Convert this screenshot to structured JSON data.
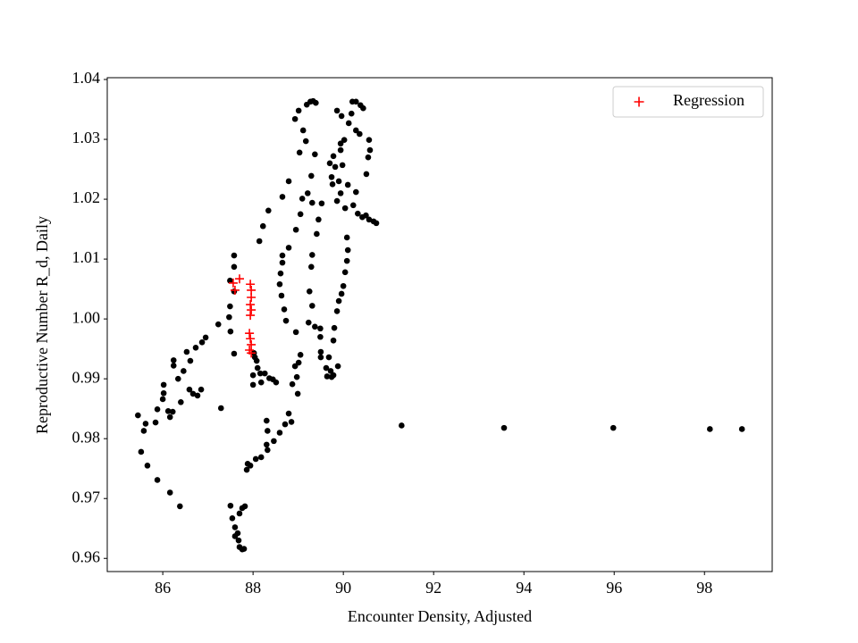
{
  "chart_data": {
    "type": "scatter",
    "xlabel": "Encounter Density, Adjusted",
    "ylabel": "Reproductive Number R_d, Daily",
    "xlim": [
      84.77,
      99.5
    ],
    "ylim": [
      0.9578,
      1.0403
    ],
    "xticks": [
      86,
      88,
      90,
      92,
      94,
      96,
      98
    ],
    "yticks": [
      0.96,
      0.97,
      0.98,
      0.99,
      {
        "value": 1,
        "label": "1.00"
      },
      1.01,
      1.02,
      1.03,
      1.04
    ],
    "legend": "upper right",
    "series": [
      {
        "color": "#000000",
        "marker": "o",
        "x": [
          91.29,
          93.56,
          95.98,
          98.12,
          98.83,
          85.45,
          85.58,
          85.62,
          85.52,
          85.66,
          85.88,
          86.16,
          86.38,
          85.84,
          85.88,
          86.0,
          86.02,
          86.02,
          86.12,
          86.16,
          86.22,
          86.24,
          86.24,
          86.34,
          86.4,
          86.46,
          86.53,
          86.59,
          86.61,
          86.67,
          86.73,
          86.77,
          86.85,
          86.87,
          86.95,
          87.29,
          87.23,
          87.47,
          87.49,
          87.49,
          87.5,
          87.58,
          87.58,
          87.58,
          87.58,
          88.02,
          88.04,
          88.08,
          88.0,
          88.1,
          88.16,
          88.26,
          88.36,
          88.44,
          88.51,
          88.0,
          88.18,
          87.86,
          87.88,
          87.94,
          88.06,
          88.18,
          88.3,
          88.32,
          88.3,
          88.32,
          88.46,
          88.59,
          88.71,
          88.79,
          88.85,
          88.87,
          88.97,
          88.99,
          89.05,
          89.01,
          88.93,
          88.95,
          88.73,
          88.69,
          88.63,
          88.59,
          88.61,
          88.65,
          88.65,
          88.79,
          88.95,
          89.05,
          89.09,
          89.21,
          89.29,
          89.31,
          89.23,
          89.37,
          89.17,
          88.93,
          89.01,
          89.19,
          89.27,
          89.33,
          89.39,
          89.11,
          89.03,
          88.79,
          88.65,
          88.34,
          88.22,
          88.14,
          89.86,
          89.96,
          90.12,
          90.18,
          90.2,
          90.28,
          90.38,
          90.44,
          90.28,
          90.36,
          90.57,
          90.59,
          90.55,
          90.51,
          90.04,
          90.22,
          90.32,
          90.42,
          90.5,
          90.57,
          90.67,
          90.73,
          90.28,
          90.1,
          89.94,
          89.86,
          89.74,
          89.82,
          89.7,
          89.98,
          89.78,
          89.94,
          89.94,
          90.02,
          89.9,
          89.76,
          89.52,
          89.45,
          89.41,
          89.31,
          89.29,
          89.25,
          89.31,
          89.37,
          89.49,
          89.49,
          89.5,
          89.5,
          89.62,
          89.64,
          89.68,
          89.72,
          89.74,
          89.78,
          89.88,
          89.78,
          89.8,
          89.86,
          89.9,
          89.96,
          90.0,
          90.04,
          90.08,
          90.1,
          90.08,
          87.7,
          87.76,
          87.82,
          87.5,
          87.54,
          87.6,
          87.66,
          87.68,
          87.7,
          87.76,
          87.8,
          87.6
        ],
        "y": [
          0.9822,
          0.9818,
          0.9818,
          0.9816,
          0.9816,
          0.9839,
          0.9813,
          0.9825,
          0.9778,
          0.9755,
          0.9731,
          0.971,
          0.9687,
          0.9827,
          0.9849,
          0.9866,
          0.9876,
          0.989,
          0.9846,
          0.9836,
          0.9845,
          0.9931,
          0.9922,
          0.99,
          0.9861,
          0.9913,
          0.9945,
          0.9882,
          0.993,
          0.9875,
          0.9952,
          0.9872,
          0.9882,
          0.9961,
          0.9969,
          0.9851,
          0.9991,
          1.0003,
          1.0064,
          1.0021,
          0.9979,
          0.9942,
          1.0106,
          1.0087,
          1.0046,
          0.9943,
          0.9936,
          0.993,
          0.9906,
          0.9918,
          0.9909,
          0.9909,
          0.9901,
          0.9899,
          0.9894,
          0.989,
          0.9894,
          0.9748,
          0.9758,
          0.9755,
          0.9766,
          0.9769,
          0.979,
          0.9813,
          0.983,
          0.9781,
          0.9796,
          0.981,
          0.9824,
          0.9842,
          0.9828,
          0.9891,
          0.9903,
          0.9875,
          0.994,
          0.9927,
          0.9921,
          0.9978,
          0.9997,
          1.0016,
          1.0039,
          1.0058,
          1.0076,
          1.0094,
          1.0106,
          1.0119,
          1.0149,
          1.0175,
          1.0201,
          1.021,
          1.0239,
          1.0194,
          0.9994,
          1.0275,
          1.0297,
          1.0334,
          1.0348,
          1.0358,
          1.0363,
          1.0364,
          1.0361,
          1.0315,
          1.0278,
          1.023,
          1.0204,
          1.0181,
          1.0155,
          1.013,
          1.0348,
          1.0339,
          1.0327,
          1.0343,
          1.0363,
          1.0363,
          1.0357,
          1.0352,
          1.0315,
          1.0309,
          1.0299,
          1.0282,
          1.027,
          1.0242,
          1.0185,
          1.019,
          1.0176,
          1.017,
          1.0173,
          1.0166,
          1.0163,
          1.016,
          1.0212,
          1.0224,
          1.021,
          1.0197,
          1.0237,
          1.0254,
          1.026,
          1.0257,
          1.0272,
          1.0282,
          1.0293,
          1.0299,
          1.023,
          1.0225,
          1.0193,
          1.0166,
          1.0142,
          1.0107,
          1.0087,
          1.0046,
          1.0022,
          0.9987,
          0.9984,
          0.997,
          0.9945,
          0.9936,
          0.9918,
          0.9904,
          0.9936,
          0.9913,
          0.9903,
          0.9906,
          0.9921,
          0.9964,
          0.9985,
          1.0013,
          1.003,
          1.0042,
          1.0055,
          1.0078,
          1.0097,
          1.0115,
          1.0136,
          0.9675,
          0.9684,
          0.9687,
          0.9688,
          0.9667,
          0.9652,
          0.9642,
          0.963,
          0.9619,
          0.9615,
          0.9616,
          0.9637
        ]
      },
      {
        "name": "Regression",
        "color": "#ff0000",
        "marker": "+",
        "x": [
          87.56,
          87.6,
          87.7,
          87.94,
          87.96,
          87.96,
          87.94,
          87.96,
          87.94,
          87.92,
          87.94,
          87.96,
          87.92,
          87.96
        ],
        "y": [
          1.006,
          1.0048,
          1.0067,
          1.0058,
          1.0048,
          1.0036,
          1.0024,
          1.0015,
          1.0006,
          0.9976,
          0.9967,
          0.9957,
          0.9948,
          0.9943
        ]
      }
    ]
  }
}
